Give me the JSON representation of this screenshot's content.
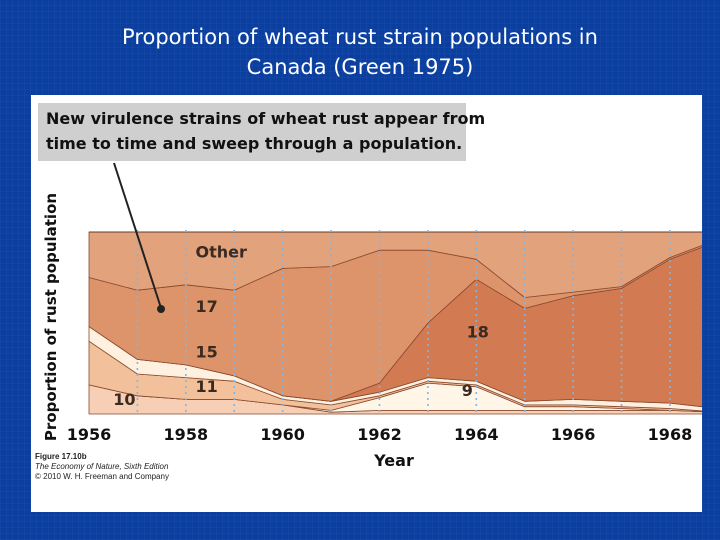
{
  "slide": {
    "title_line1": "Proportion of wheat rust strain populations in",
    "title_line2": "Canada (Green 1975)"
  },
  "figure": {
    "callout_line1": "New virulence strains of wheat rust appear from",
    "callout_line2": "time to time and sweep through a population.",
    "credit_line1": "Figure 17.10b",
    "credit_line2": "The Economy of Nature, Sixth Edition",
    "credit_line3": "© 2010 W. H. Freeman and Company"
  },
  "chart_data": {
    "type": "area",
    "stacked": true,
    "xlabel": "Year",
    "ylabel": "Proportion of rust population",
    "x": [
      1956,
      1957,
      1958,
      1959,
      1960,
      1961,
      1962,
      1963,
      1964,
      1965,
      1966,
      1967,
      1968,
      1969
    ],
    "ticks": [
      "1956",
      "1958",
      "1960",
      "1962",
      "1964",
      "1966",
      "1968"
    ],
    "ylim": [
      0,
      1
    ],
    "grid": "vertical-dotted",
    "series": [
      {
        "name": "10",
        "values": [
          0.16,
          0.1,
          0.08,
          0.08,
          0.05,
          0.01,
          0.02,
          0.02,
          0.02,
          0.02,
          0.02,
          0.02,
          0.02,
          0.01
        ]
      },
      {
        "name": "9",
        "values": [
          0.0,
          0.0,
          0.0,
          0.0,
          0.0,
          0.01,
          0.07,
          0.15,
          0.13,
          0.02,
          0.02,
          0.01,
          0.0,
          0.0
        ]
      },
      {
        "name": "11",
        "values": [
          0.24,
          0.12,
          0.12,
          0.1,
          0.03,
          0.03,
          0.01,
          0.01,
          0.01,
          0.01,
          0.01,
          0.01,
          0.01,
          0.0
        ]
      },
      {
        "name": "15",
        "values": [
          0.08,
          0.08,
          0.07,
          0.03,
          0.02,
          0.02,
          0.02,
          0.02,
          0.02,
          0.02,
          0.03,
          0.03,
          0.03,
          0.02
        ]
      },
      {
        "name": "18",
        "values": [
          0.0,
          0.0,
          0.0,
          0.0,
          0.0,
          0.0,
          0.05,
          0.3,
          0.56,
          0.51,
          0.57,
          0.62,
          0.79,
          0.92
        ]
      },
      {
        "name": "17",
        "values": [
          0.27,
          0.38,
          0.44,
          0.47,
          0.7,
          0.74,
          0.73,
          0.4,
          0.11,
          0.06,
          0.02,
          0.01,
          0.01,
          0.01
        ]
      },
      {
        "name": "Other",
        "values": [
          0.25,
          0.32,
          0.29,
          0.32,
          0.2,
          0.19,
          0.1,
          0.1,
          0.15,
          0.36,
          0.33,
          0.3,
          0.14,
          0.04
        ]
      }
    ],
    "annotations": [
      {
        "text": "Other",
        "x": 1958.2,
        "y": 0.86
      },
      {
        "text": "17",
        "x": 1958.2,
        "y": 0.56
      },
      {
        "text": "15",
        "x": 1958.2,
        "y": 0.31
      },
      {
        "text": "11",
        "x": 1958.2,
        "y": 0.12
      },
      {
        "text": "10",
        "x": 1956.5,
        "y": 0.05
      },
      {
        "text": "18",
        "x": 1963.8,
        "y": 0.42
      },
      {
        "text": "9",
        "x": 1963.7,
        "y": 0.1
      }
    ],
    "colors": [
      "#F7CFB4",
      "#FFF6E8",
      "#F2C09B",
      "#FFF0E0",
      "#D27A52",
      "#DD946A",
      "#E2A27C"
    ]
  }
}
